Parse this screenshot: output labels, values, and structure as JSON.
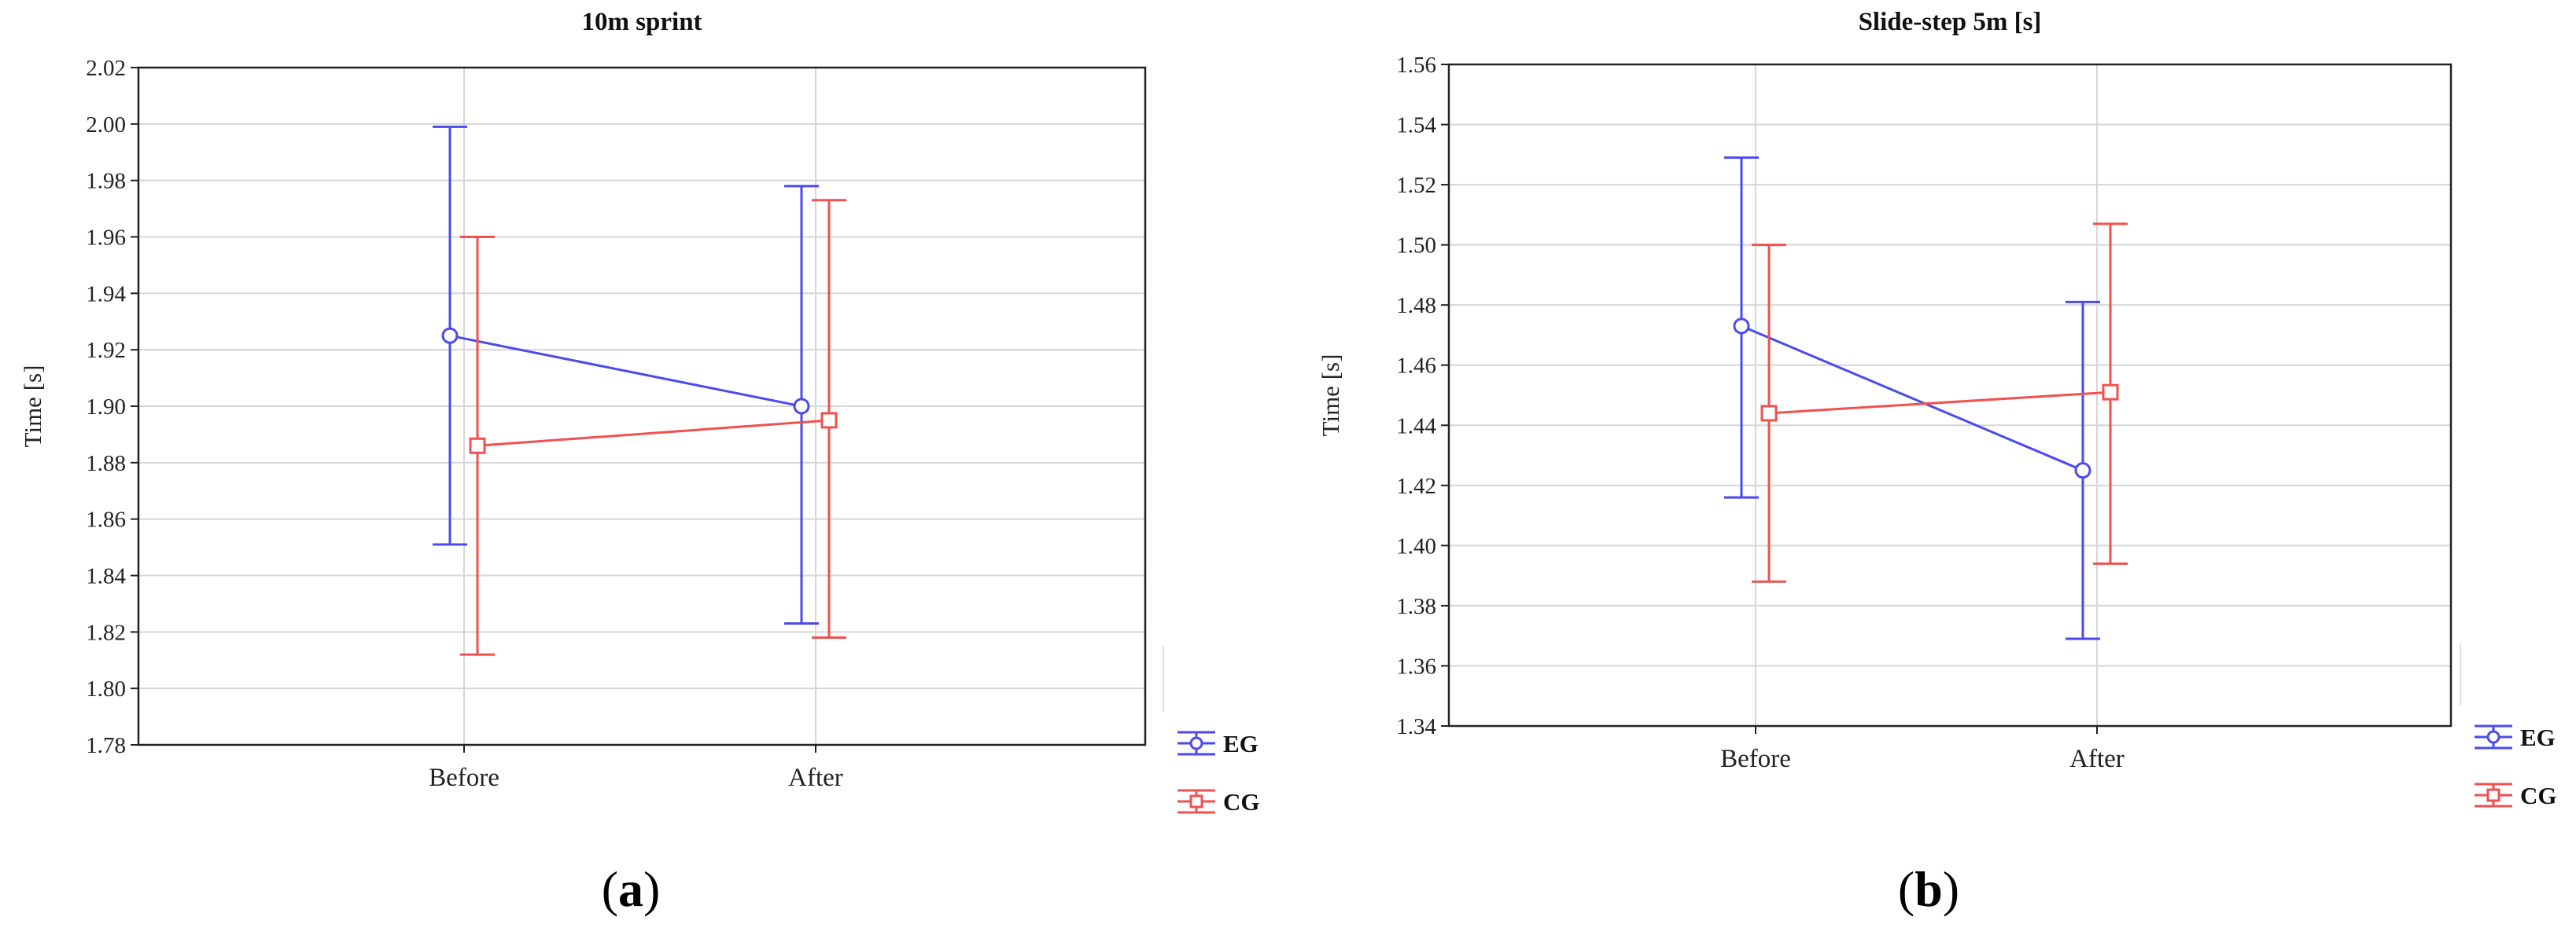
{
  "chart_data": [
    {
      "type": "line",
      "title": "10m sprint",
      "xlabel": "",
      "ylabel": "Time [s]",
      "categories": [
        "Before",
        "After"
      ],
      "ylim": [
        1.78,
        2.02
      ],
      "yticks": [
        "1.78",
        "1.80",
        "1.82",
        "1.84",
        "1.86",
        "1.88",
        "1.90",
        "1.92",
        "1.94",
        "1.96",
        "1.98",
        "2.00",
        "2.02"
      ],
      "grid": true,
      "legend": "bottom-right",
      "error_bars": true,
      "series": [
        {
          "name": "EG",
          "color": "#4a4af0",
          "marker": "circle",
          "values": [
            1.925,
            1.9
          ],
          "lower": [
            1.851,
            1.823
          ],
          "upper": [
            1.999,
            1.978
          ]
        },
        {
          "name": "CG",
          "color": "#f05050",
          "marker": "square",
          "values": [
            1.886,
            1.895
          ],
          "lower": [
            1.812,
            1.818
          ],
          "upper": [
            1.96,
            1.973
          ]
        }
      ],
      "panel_label": {
        "open": "(",
        "letter": "a",
        "close": ")"
      }
    },
    {
      "type": "line",
      "title": "Slide-step 5m [s]",
      "xlabel": "",
      "ylabel": "Time [s]",
      "categories": [
        "Before",
        "After"
      ],
      "ylim": [
        1.34,
        1.56
      ],
      "yticks": [
        "1.34",
        "1.36",
        "1.38",
        "1.40",
        "1.42",
        "1.44",
        "1.46",
        "1.48",
        "1.50",
        "1.52",
        "1.54",
        "1.56"
      ],
      "grid": true,
      "legend": "bottom-right",
      "error_bars": true,
      "series": [
        {
          "name": "EG",
          "color": "#4a4af0",
          "marker": "circle",
          "values": [
            1.473,
            1.425
          ],
          "lower": [
            1.416,
            1.369
          ],
          "upper": [
            1.529,
            1.481
          ]
        },
        {
          "name": "CG",
          "color": "#f05050",
          "marker": "square",
          "values": [
            1.444,
            1.451
          ],
          "lower": [
            1.388,
            1.394
          ],
          "upper": [
            1.5,
            1.507
          ]
        }
      ],
      "panel_label": {
        "open": "(",
        "letter": "b",
        "close": ")"
      }
    }
  ]
}
